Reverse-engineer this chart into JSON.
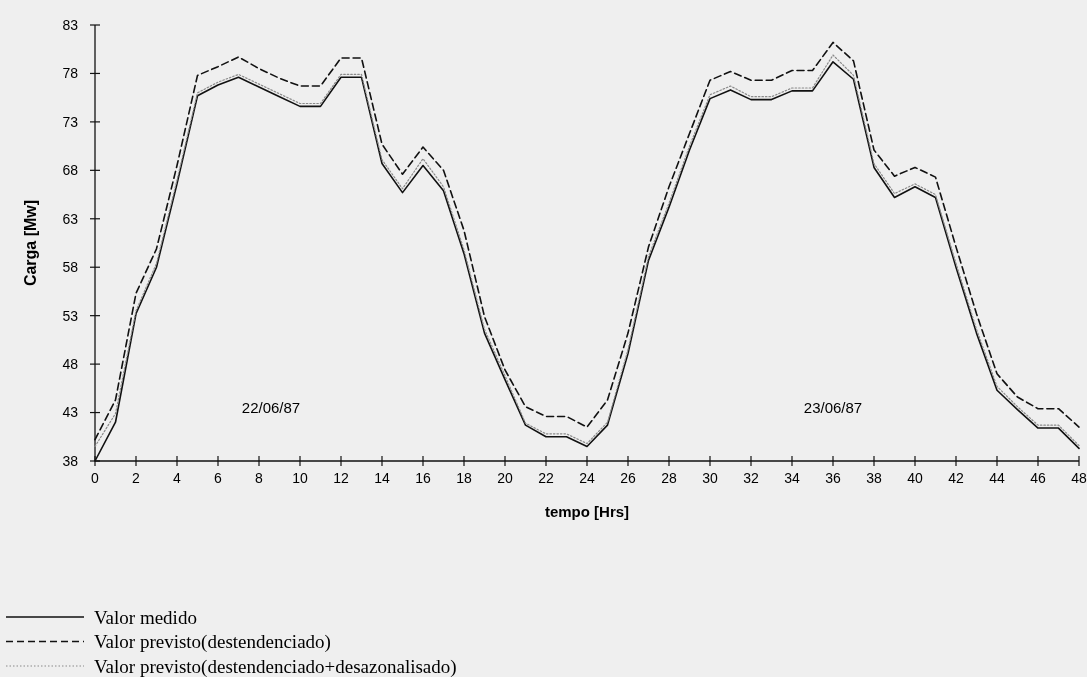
{
  "chart_data": {
    "type": "line",
    "xlabel": "tempo [Hrs]",
    "ylabel": "Carga [Mw]",
    "x": [
      0,
      1,
      2,
      3,
      4,
      5,
      6,
      7,
      8,
      9,
      10,
      11,
      12,
      13,
      14,
      15,
      16,
      17,
      18,
      19,
      20,
      21,
      22,
      23,
      24,
      25,
      26,
      27,
      28,
      29,
      30,
      31,
      32,
      33,
      34,
      35,
      36,
      37,
      38,
      39,
      40,
      41,
      42,
      43,
      44,
      45,
      46,
      47,
      48
    ],
    "xlim": [
      0,
      48
    ],
    "xticks": [
      0,
      2,
      4,
      6,
      8,
      10,
      12,
      14,
      16,
      18,
      20,
      22,
      24,
      26,
      28,
      30,
      32,
      34,
      36,
      38,
      40,
      42,
      44,
      46,
      48
    ],
    "ylim": [
      38,
      83
    ],
    "yticks": [
      38,
      43,
      48,
      53,
      58,
      63,
      68,
      73,
      78,
      83
    ],
    "grid": false,
    "legend": "bottom left",
    "marker": "none",
    "annotations": [
      "22/06/87",
      "23/06/87"
    ],
    "series": [
      {
        "name": "Valor medido",
        "color": "#111111",
        "line_style": "solid",
        "values": [
          38,
          42,
          53.2,
          58,
          66.6,
          75.7,
          76.8,
          77.6,
          76.6,
          75.6,
          74.6,
          74.6,
          77.6,
          77.6,
          68.7,
          65.7,
          68.5,
          65.9,
          59.4,
          51.2,
          46.4,
          41.7,
          40.5,
          40.5,
          39.5,
          41.7,
          49.1,
          58.7,
          64.2,
          70.1,
          75.4,
          76.3,
          75.3,
          75.3,
          76.2,
          76.2,
          79.2,
          77.4,
          68.3,
          65.2,
          66.3,
          65.2,
          58,
          51.2,
          45.3,
          43.3,
          41.4,
          41.4,
          39.3
        ]
      },
      {
        "name": "Valor previsto(destendenciado)",
        "color": "#111111",
        "line_style": "dashed",
        "values": [
          40.2,
          44.3,
          55.3,
          59.9,
          68.5,
          77.8,
          78.7,
          79.7,
          78.5,
          77.5,
          76.7,
          76.7,
          79.6,
          79.6,
          70.7,
          67.6,
          70.4,
          68,
          61.8,
          52.9,
          47.4,
          43.6,
          42.6,
          42.6,
          41.5,
          44.3,
          51.2,
          60.1,
          66.3,
          71.8,
          77.3,
          78.2,
          77.3,
          77.3,
          78.3,
          78.3,
          81.2,
          79.3,
          70.1,
          67.4,
          68.3,
          67.3,
          60.1,
          53.2,
          47,
          44.6,
          43.4,
          43.4,
          41.5
        ]
      },
      {
        "name": "Valor previsto(destendenciado+desazonalisado)",
        "color": "#8a8a8a",
        "line_style": "dotted",
        "values": [
          39.5,
          42.9,
          53.5,
          58.4,
          67,
          76,
          77.1,
          77.9,
          76.9,
          75.9,
          74.9,
          74.9,
          77.9,
          77.9,
          69.1,
          66.1,
          69.2,
          66.3,
          59.8,
          51.6,
          46.8,
          41.9,
          40.8,
          40.8,
          39.8,
          42,
          49.5,
          59.1,
          64.6,
          70.5,
          75.8,
          76.7,
          75.6,
          75.6,
          76.5,
          76.5,
          79.9,
          77.8,
          68.7,
          65.6,
          66.6,
          65.5,
          58.4,
          51.6,
          45.7,
          43.6,
          41.7,
          41.7,
          39.6
        ]
      }
    ]
  }
}
